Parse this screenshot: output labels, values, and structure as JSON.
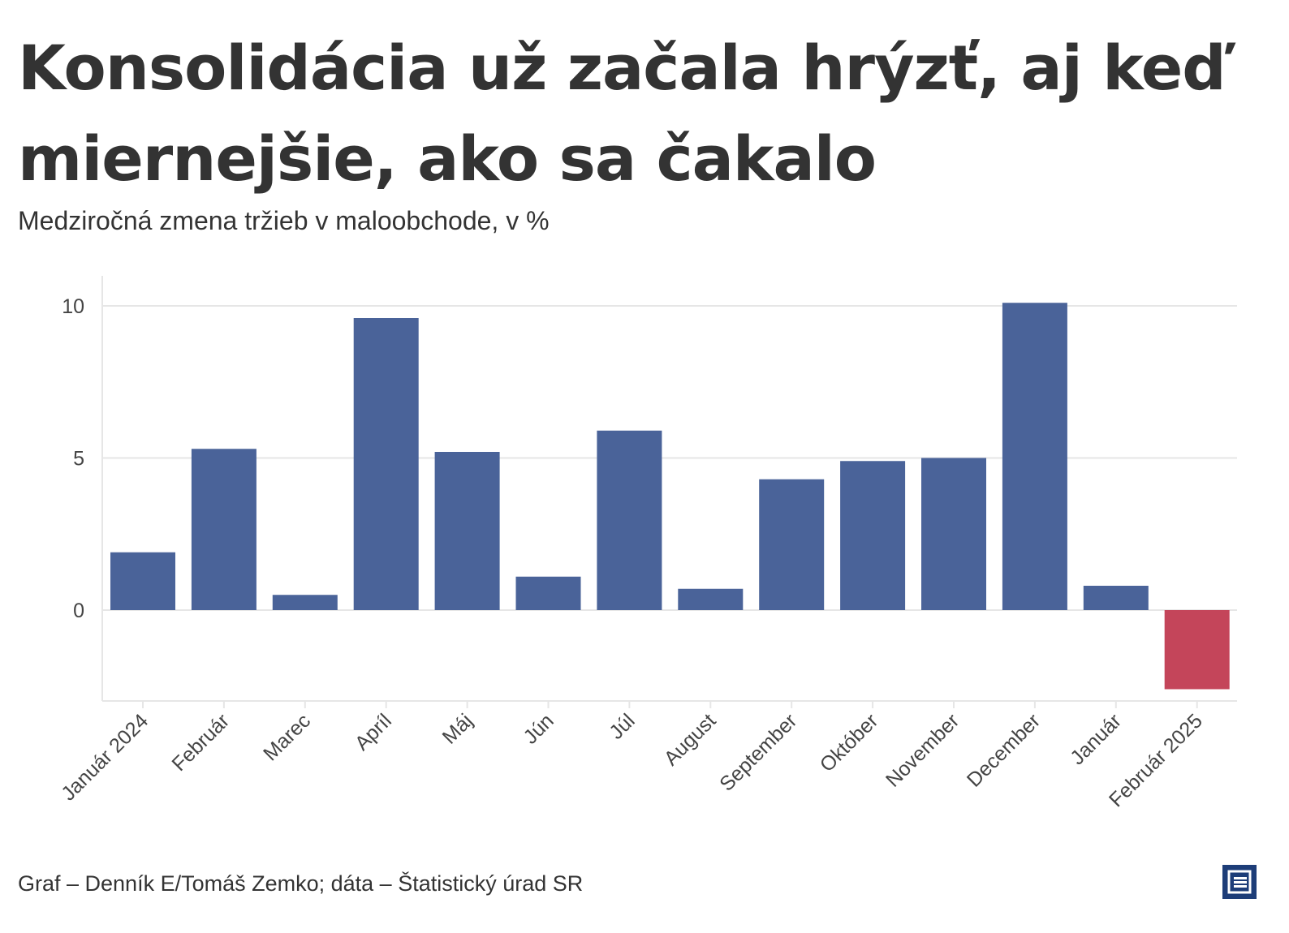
{
  "title": "Konsolidácia už začala hrýzť, aj keď miernejšie, ako sa čakalo",
  "subtitle": "Medziročná zmena tržieb v maloobchode, v %",
  "footer": "Graf – Denník E/Tomáš Zemko; dáta – Štatistický úrad SR",
  "colors": {
    "positive": "#4a6399",
    "negative": "#c4455a",
    "grid": "#e6e6e6",
    "logo": "#1d3d78"
  },
  "logo_icon": "denník-e-logo-icon",
  "chart_data": {
    "type": "bar",
    "categories": [
      "Január 2024",
      "Február",
      "Marec",
      "Apríl",
      "Máj",
      "Jún",
      "Júl",
      "August",
      "September",
      "Október",
      "November",
      "December",
      "Január",
      "Február 2025"
    ],
    "values": [
      1.9,
      5.3,
      0.5,
      9.6,
      5.2,
      1.1,
      5.9,
      0.7,
      4.3,
      4.9,
      5.0,
      10.1,
      0.8,
      -2.6
    ],
    "yticks": [
      0,
      5,
      10
    ],
    "ylim": [
      -3,
      11.0
    ],
    "xlabel": "",
    "ylabel": "",
    "grid": true,
    "legend": "none"
  }
}
